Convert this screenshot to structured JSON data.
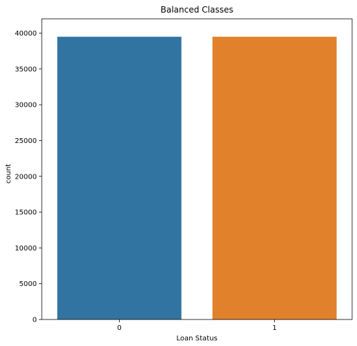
{
  "chart_data": {
    "type": "bar",
    "title": "Balanced Classes",
    "xlabel": "Loan Status",
    "ylabel": "count",
    "categories": [
      "0",
      "1"
    ],
    "values": [
      39500,
      39500
    ],
    "colors": [
      "#3274a1",
      "#e1812c"
    ],
    "ylim": [
      0,
      42000
    ],
    "yticks": [
      0,
      5000,
      10000,
      15000,
      20000,
      25000,
      30000,
      35000,
      40000
    ],
    "grid": false,
    "legend": "none"
  }
}
